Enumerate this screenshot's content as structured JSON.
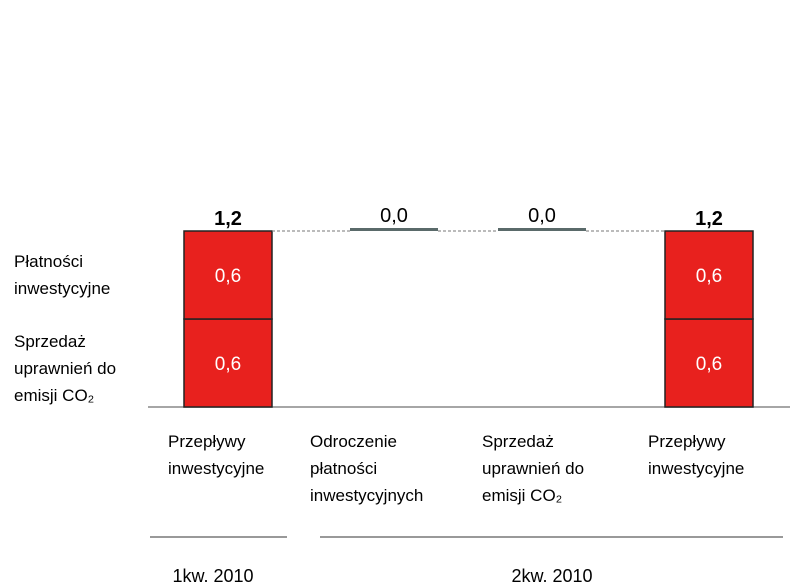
{
  "chart_data": {
    "type": "waterfall",
    "categories": [
      "Przepływy inwestycyjne",
      "Odroczenie płatności inwestycyjnych",
      "Sprzedaż uprawnień do emisji CO₂",
      "Przepływy inwestycyjne"
    ],
    "series": [
      {
        "name": "Sprzedaż uprawnień do emisji CO₂",
        "color": "#e8211e",
        "values": [
          0.6,
          null,
          null,
          0.6
        ],
        "value_labels": [
          "0,6",
          null,
          null,
          "0,6"
        ]
      },
      {
        "name": "Płatności inwestycyjne",
        "color": "#e8211e",
        "values": [
          0.6,
          null,
          null,
          0.6
        ],
        "value_labels": [
          "0,6",
          null,
          null,
          "0,6"
        ]
      }
    ],
    "totals": [
      1.2,
      null,
      null,
      1.2
    ],
    "total_labels": [
      "1,2",
      null,
      null,
      "1,2"
    ],
    "changes": [
      null,
      0.0,
      0.0,
      null
    ],
    "change_labels": [
      null,
      "0,0",
      "0,0",
      null
    ],
    "change_color": "#5a6a6a",
    "ylim": [
      0,
      1.2
    ],
    "x_groups": [
      {
        "label": "1kw. 2010",
        "count": 1
      },
      {
        "label": "2kw. 2010",
        "count": 3
      }
    ]
  }
}
